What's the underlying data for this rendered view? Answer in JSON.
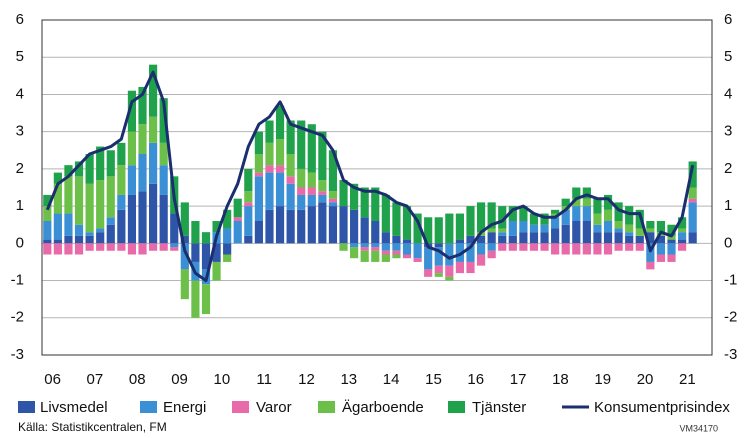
{
  "chart_data": {
    "type": "bar",
    "categories": [
      "06",
      null,
      null,
      null,
      "07",
      null,
      null,
      null,
      "08",
      null,
      null,
      null,
      "09",
      null,
      null,
      null,
      "10",
      null,
      null,
      null,
      "11",
      null,
      null,
      null,
      "12",
      null,
      null,
      null,
      "13",
      null,
      null,
      null,
      "14",
      null,
      null,
      null,
      "15",
      null,
      null,
      null,
      "16",
      null,
      null,
      null,
      "17",
      null,
      null,
      null,
      "18",
      null,
      null,
      null,
      "19",
      null,
      null,
      null,
      "20",
      null,
      null,
      null,
      "21",
      null
    ],
    "series": [
      {
        "name": "Livsmedel",
        "color": "#2f55a8",
        "values": [
          0.1,
          0.1,
          0.2,
          0.2,
          0.2,
          0.3,
          0.5,
          0.9,
          1.3,
          1.4,
          1.6,
          1.3,
          0.8,
          0.2,
          -0.5,
          -0.7,
          -0.5,
          -0.3,
          0,
          0.2,
          0.6,
          0.9,
          1.0,
          0.9,
          0.9,
          1.0,
          1.1,
          1.0,
          1.0,
          0.9,
          0.7,
          0.6,
          0.3,
          0.2,
          0.1,
          0,
          -0.1,
          -0.1,
          0,
          0.1,
          0.2,
          0.2,
          0.3,
          0.2,
          0.2,
          0.3,
          0.3,
          0.3,
          0.4,
          0.5,
          0.6,
          0.6,
          0.3,
          0.3,
          0.3,
          0.2,
          0.2,
          0.3,
          0.2,
          0.1,
          0.1,
          0.3
        ]
      },
      {
        "name": "Energi",
        "color": "#3b8fd4",
        "values": [
          0.5,
          0.7,
          0.6,
          0.3,
          0.1,
          0.1,
          0.2,
          0.4,
          0.8,
          1.0,
          1.1,
          0.8,
          -0.1,
          -0.7,
          -0.5,
          -0.4,
          0.3,
          0.4,
          0.6,
          0.8,
          1.2,
          1.0,
          0.9,
          0.7,
          0.4,
          0.3,
          0.2,
          0.1,
          0,
          -0.1,
          -0.1,
          -0.1,
          -0.2,
          -0.2,
          -0.3,
          -0.4,
          -0.6,
          -0.5,
          -0.6,
          -0.5,
          -0.5,
          -0.3,
          -0.2,
          0.1,
          0.4,
          0.3,
          0.2,
          0.2,
          0.3,
          0.4,
          0.4,
          0.4,
          0.2,
          0.3,
          0.1,
          0.1,
          0,
          -0.5,
          -0.3,
          -0.3,
          0.2,
          0.8
        ]
      },
      {
        "name": "Varor",
        "color": "#e86aa8",
        "values": [
          -0.3,
          -0.3,
          -0.3,
          -0.3,
          -0.2,
          -0.2,
          -0.2,
          -0.2,
          -0.3,
          -0.3,
          -0.2,
          -0.2,
          -0.1,
          0,
          0,
          0,
          0,
          0,
          0.1,
          0.1,
          0.1,
          0.2,
          0.2,
          0.2,
          0.2,
          0.2,
          0.1,
          0.1,
          0,
          0,
          -0.1,
          -0.1,
          -0.1,
          -0.1,
          -0.1,
          -0.1,
          -0.2,
          -0.2,
          -0.3,
          -0.3,
          -0.3,
          -0.3,
          -0.2,
          -0.2,
          -0.2,
          -0.2,
          -0.2,
          -0.2,
          -0.3,
          -0.3,
          -0.3,
          -0.3,
          -0.3,
          -0.3,
          -0.2,
          -0.2,
          -0.2,
          -0.2,
          -0.2,
          -0.2,
          -0.2,
          0.1
        ]
      },
      {
        "name": "Ägarboende",
        "color": "#6cc04a",
        "values": [
          0.4,
          0.8,
          1.0,
          1.3,
          1.3,
          1.3,
          1.1,
          0.8,
          0.9,
          0.8,
          0.7,
          0.6,
          0,
          -0.8,
          -1.0,
          -0.8,
          -0.5,
          -0.2,
          0,
          0.3,
          0.5,
          0.6,
          0.7,
          0.6,
          0.5,
          0.4,
          0.3,
          0.2,
          -0.2,
          -0.3,
          -0.3,
          -0.3,
          -0.2,
          -0.1,
          0,
          0,
          0,
          -0.1,
          -0.1,
          0,
          0,
          0.1,
          0.1,
          0.1,
          0,
          0,
          0,
          0,
          0.1,
          0.1,
          0.2,
          0.2,
          0.3,
          0.3,
          0.2,
          0.2,
          0.2,
          0.1,
          0.1,
          0.1,
          0.1,
          0.3
        ]
      },
      {
        "name": "Tjänster",
        "color": "#1fa24b",
        "values": [
          0.3,
          0.3,
          0.3,
          0.4,
          0.8,
          0.9,
          0.7,
          0.6,
          1.1,
          1.0,
          1.4,
          1.2,
          1.0,
          0.9,
          0.6,
          0.3,
          0.3,
          0.5,
          0.5,
          0.6,
          0.6,
          0.6,
          0.9,
          0.9,
          1.3,
          1.3,
          1.3,
          1.1,
          0.7,
          0.7,
          0.8,
          0.9,
          1.0,
          0.9,
          0.9,
          0.8,
          0.7,
          0.7,
          0.8,
          0.7,
          0.8,
          0.8,
          0.7,
          0.6,
          0.4,
          0.4,
          0.3,
          0.3,
          0.1,
          0.2,
          0.3,
          0.3,
          0.4,
          0.4,
          0.5,
          0.5,
          0.5,
          0.2,
          0.3,
          0.3,
          0.3,
          0.7
        ]
      },
      {
        "name": "Konsumentprisindex",
        "color": "#1b2e6e",
        "type": "line",
        "values": [
          0.9,
          1.6,
          1.8,
          2.1,
          2.4,
          2.5,
          2.6,
          2.8,
          3.8,
          4.0,
          4.6,
          3.8,
          1.2,
          -0.2,
          -0.8,
          -1.0,
          0.2,
          1.0,
          1.6,
          2.6,
          3.2,
          3.4,
          3.8,
          3.2,
          3.1,
          3.0,
          2.9,
          2.5,
          1.7,
          1.5,
          1.4,
          1.4,
          1.3,
          1.1,
          1.0,
          0.6,
          -0.1,
          -0.2,
          -0.4,
          -0.3,
          -0.1,
          0.3,
          0.5,
          0.6,
          0.9,
          1.0,
          0.8,
          0.7,
          0.7,
          0.9,
          1.2,
          1.3,
          1.2,
          1.2,
          0.9,
          0.8,
          0.8,
          -0.2,
          0.3,
          0.2,
          0.7,
          2.1
        ]
      }
    ],
    "ylim": [
      -3,
      6
    ],
    "yticks": [
      -3,
      -2,
      -1,
      0,
      1,
      2,
      3,
      4,
      5,
      6
    ],
    "grid": true,
    "source": "Källa: Statistikcentralen, FM",
    "code": "VM34170"
  }
}
